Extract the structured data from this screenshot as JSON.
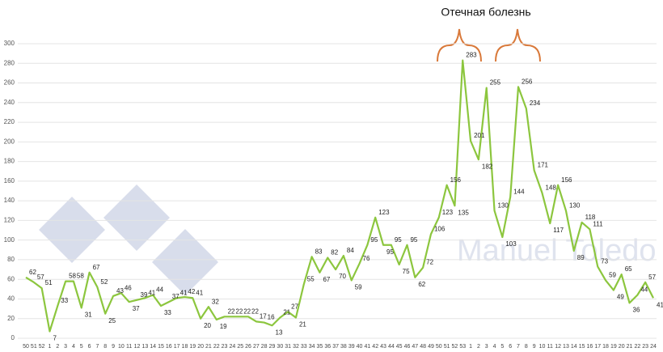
{
  "chart_data": {
    "type": "line",
    "annotation": "Отечная болезнь",
    "watermark": "Manuel Toledo",
    "categories": [
      "50",
      "51",
      "52",
      "1",
      "2",
      "3",
      "4",
      "5",
      "6",
      "7",
      "8",
      "9",
      "10",
      "11",
      "12",
      "13",
      "14",
      "15",
      "16",
      "17",
      "18",
      "19",
      "20",
      "21",
      "22",
      "23",
      "24",
      "25",
      "26",
      "27",
      "28",
      "29",
      "30",
      "31",
      "32",
      "33",
      "34",
      "35",
      "36",
      "37",
      "38",
      "39",
      "40",
      "41",
      "42",
      "43",
      "44",
      "45",
      "46",
      "47",
      "48",
      "49",
      "50",
      "51",
      "52",
      "53",
      "1",
      "2",
      "3",
      "4",
      "5",
      "6",
      "7",
      "8",
      "9",
      "10",
      "11",
      "12",
      "13",
      "14",
      "15",
      "16",
      "17",
      "18",
      "19",
      "20",
      "21",
      "22",
      "23",
      "24"
    ],
    "values": [
      62,
      57,
      51,
      7,
      33,
      58,
      58,
      31,
      67,
      52,
      25,
      43,
      46,
      37,
      39,
      41,
      44,
      33,
      37,
      41,
      42,
      41,
      20,
      32,
      19,
      22,
      22,
      22,
      22,
      17,
      16,
      13,
      21,
      27,
      21,
      55,
      83,
      67,
      82,
      70,
      84,
      59,
      76,
      95,
      123,
      95,
      95,
      75,
      95,
      62,
      72,
      106,
      123,
      156,
      135,
      283,
      201,
      182,
      255,
      130,
      103,
      144,
      256,
      234,
      171,
      148,
      117,
      156,
      130,
      89,
      118,
      111,
      73,
      59,
      49,
      65,
      36,
      44,
      57,
      41
    ],
    "color": "#8cc63e",
    "ylim": [
      0,
      300
    ],
    "yticks": [
      0,
      20,
      40,
      60,
      80,
      100,
      120,
      140,
      160,
      180,
      200,
      220,
      240,
      260,
      280,
      300
    ],
    "grid": true
  }
}
